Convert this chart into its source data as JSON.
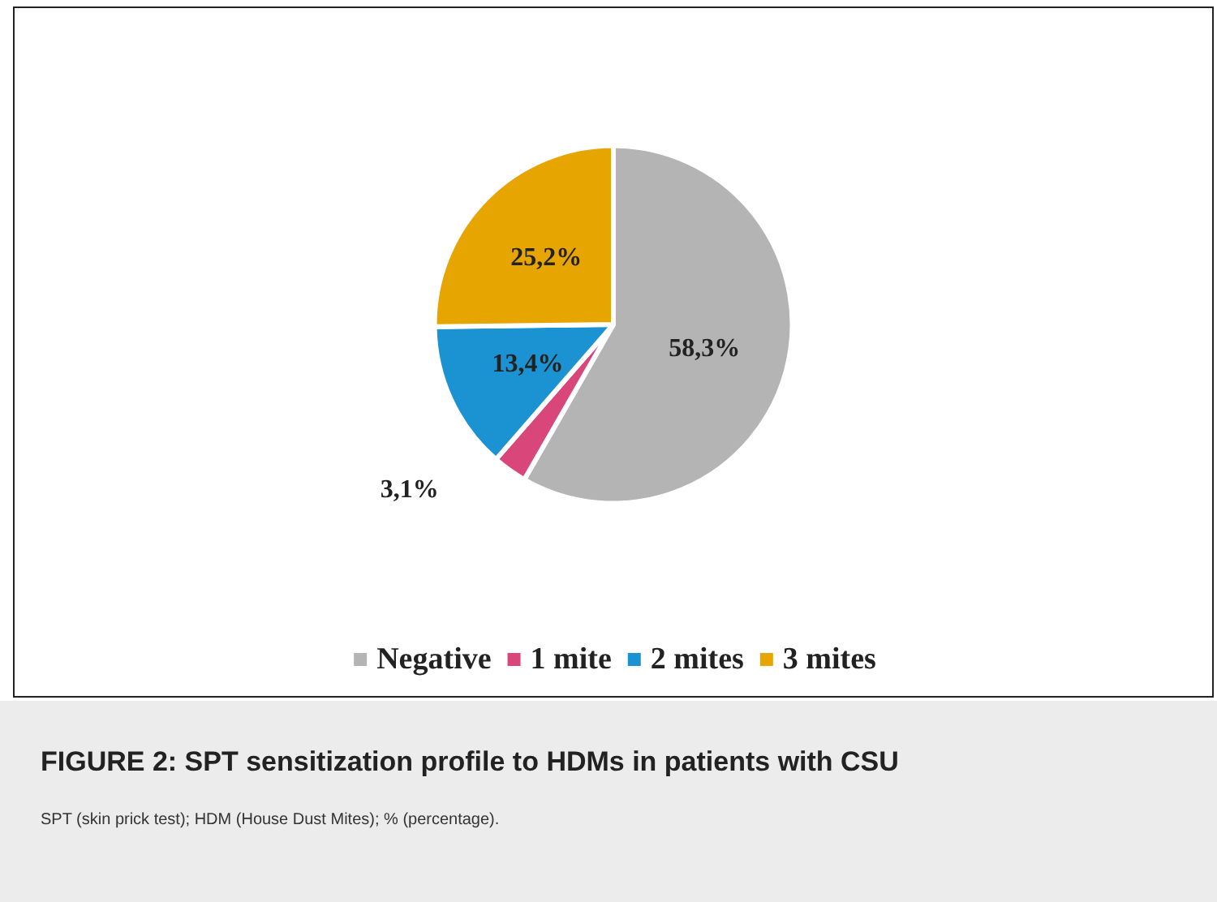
{
  "chart_data": {
    "type": "pie",
    "title": "FIGURE 2: SPT sensitization profile to HDMs in patients with CSU",
    "annotations": [
      "SPT (skin prick test); HDM (House Dust Mites); % (percentage)."
    ],
    "categories": [
      "Negative",
      "1 mite",
      "2 mites",
      "3 mites"
    ],
    "values": [
      58.3,
      3.1,
      13.4,
      25.2
    ],
    "value_labels": [
      "58,3%",
      "3,1%",
      "13,4%",
      "25,2%"
    ],
    "colors": [
      "#b4b4b4",
      "#d9467a",
      "#1b93d2",
      "#e6a500"
    ],
    "legend": "bottom"
  }
}
